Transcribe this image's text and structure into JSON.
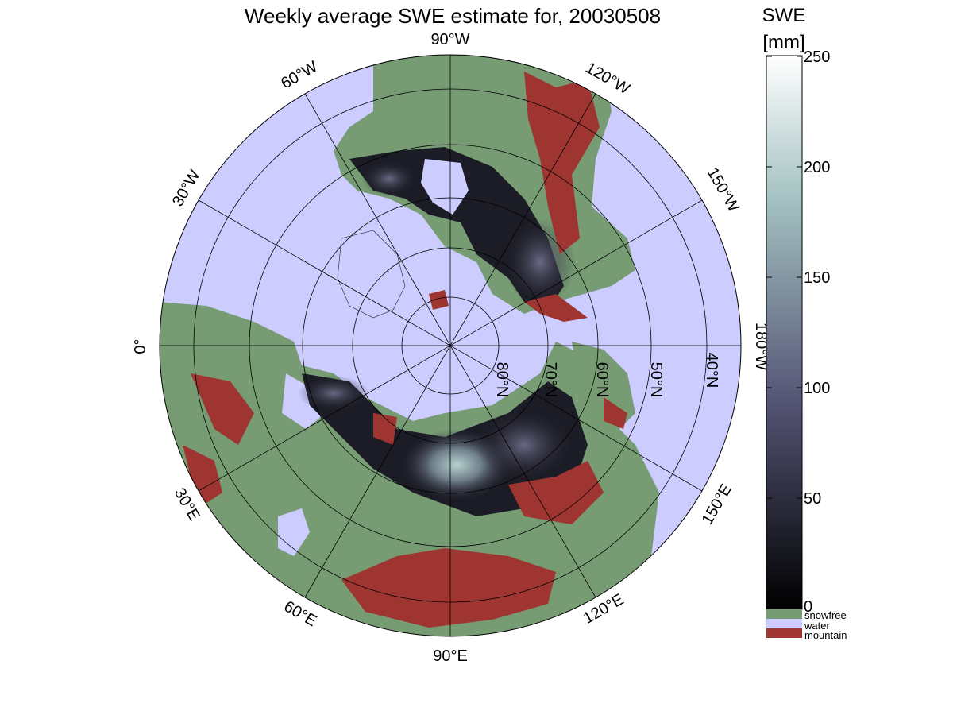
{
  "title": "Weekly average SWE estimate for, 20030508",
  "colorbar": {
    "title_line1": "SWE",
    "title_line2": "[mm]",
    "ticks": [
      "250",
      "200",
      "150",
      "100",
      "50",
      "0"
    ],
    "range": [
      0,
      250
    ],
    "colormap": "bone"
  },
  "legend": {
    "items": [
      {
        "label": "snowfree",
        "color": "#779c74"
      },
      {
        "label": "water",
        "color": "#ccccff"
      },
      {
        "label": "mountain",
        "color": "#9e3531"
      }
    ]
  },
  "map": {
    "projection": "north-polar-stereographic",
    "longitude_labels": {
      "lon_90W": "90°W",
      "lon_60W": "60°W",
      "lon_30W": "30°W",
      "lon_0": "0°",
      "lon_30E": "30°E",
      "lon_60E": "60°E",
      "lon_90E": "90°E",
      "lon_120E": "120°E",
      "lon_150E": "150°E",
      "lon_180W": "180°W",
      "lon_150W": "150°W",
      "lon_120W": "120°W"
    },
    "latitude_labels": {
      "lat_80N": "80°N",
      "lat_70N": "70°N",
      "lat_60N": "60°N",
      "lat_50N": "50°N",
      "lat_40N": "40°N"
    },
    "colors": {
      "ocean": "#ccccff",
      "snowfree": "#779c74",
      "mountain": "#9e3531",
      "snow_low": "#14141c",
      "snow_mid": "#4a4a62",
      "snow_high": "#b4d2cc"
    }
  }
}
